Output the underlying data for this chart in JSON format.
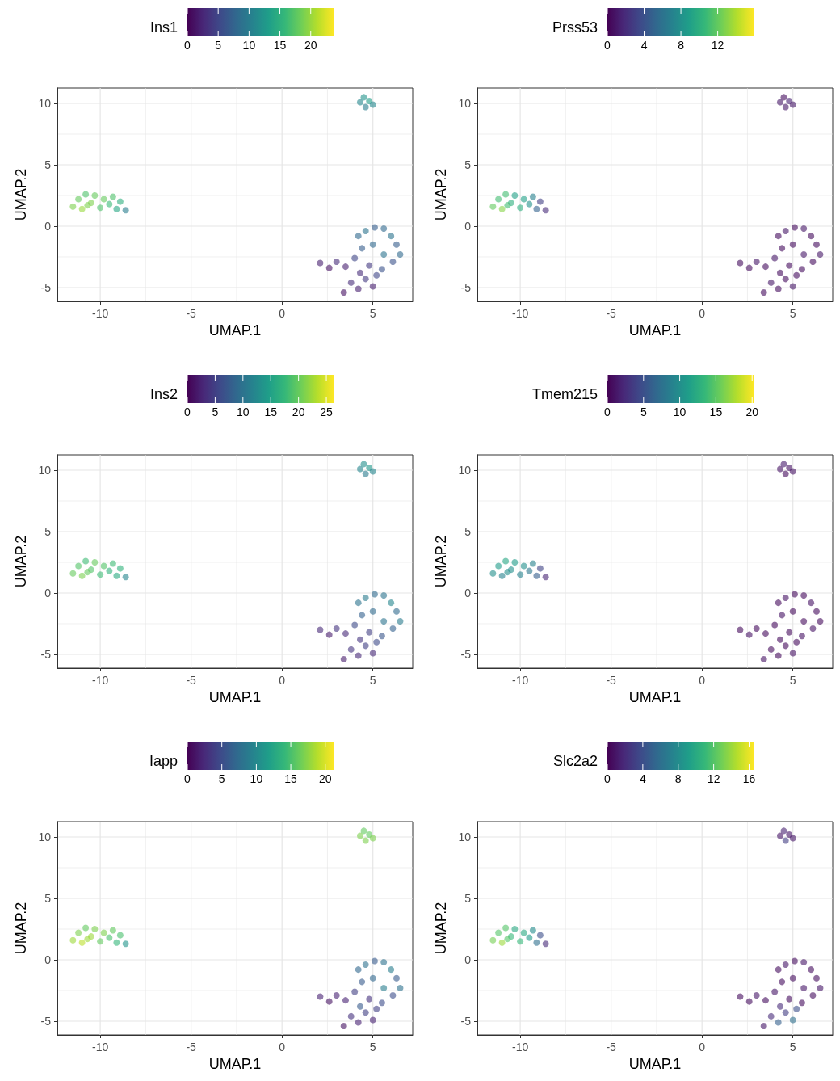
{
  "chart_data": [
    {
      "type": "scatter",
      "xlabel": "UMAP.1",
      "ylabel": "UMAP.2",
      "clabel": "Ins1",
      "marker": "circle",
      "grid": true,
      "xlim": [
        -12.36,
        7.19
      ],
      "ylim": [
        -6.12,
        11.25
      ],
      "xticks": [
        -10,
        -5,
        0,
        5
      ],
      "yticks": [
        -5,
        0,
        5,
        10
      ],
      "clim": [
        0,
        23.7
      ],
      "cticks": [
        0,
        5,
        10,
        15,
        20
      ],
      "x": [
        -11.5,
        -11.2,
        -11.0,
        -10.8,
        -10.5,
        -10.3,
        -10.0,
        -9.8,
        -9.5,
        -9.3,
        -9.1,
        -8.9,
        -8.6,
        -10.7,
        4.3,
        4.5,
        4.6,
        4.8,
        5.0,
        4.2,
        4.6,
        5.1,
        5.6,
        6.0,
        6.3,
        6.5,
        6.1,
        5.6,
        5.0,
        4.4,
        4.0,
        4.8,
        5.5,
        2.1,
        2.6,
        3.0,
        3.5,
        3.4,
        3.8,
        4.2,
        4.6,
        5.0,
        4.3,
        5.2
      ],
      "values": [
        1.6,
        2.2,
        1.4,
        2.6,
        1.9,
        2.5,
        1.5,
        2.2,
        1.8,
        2.4,
        1.4,
        2.0,
        1.3,
        1.7,
        10.1,
        10.5,
        9.7,
        10.2,
        9.9,
        -0.8,
        -0.4,
        -0.1,
        -0.2,
        -0.8,
        -1.5,
        -2.3,
        -2.9,
        -2.3,
        -1.5,
        -1.8,
        -2.6,
        -3.2,
        -3.5,
        -3.0,
        -3.4,
        -2.9,
        -3.3,
        -5.4,
        -4.6,
        -5.1,
        -4.3,
        -4.9,
        -3.8,
        -4.0
      ],
      "cvalues": [
        19,
        18,
        20,
        17,
        19,
        18,
        17,
        18,
        16,
        17,
        14,
        15,
        10,
        19,
        11,
        12,
        10,
        13,
        11,
        8,
        9,
        7,
        8,
        9,
        7,
        8,
        6,
        9,
        8,
        7,
        5,
        4,
        6,
        2,
        1,
        3,
        2,
        1,
        3,
        2,
        4,
        2,
        3,
        5
      ]
    },
    {
      "type": "scatter",
      "xlabel": "UMAP.1",
      "ylabel": "UMAP.2",
      "clabel": "Prss53",
      "marker": "circle",
      "grid": true,
      "xlim": [
        -12.36,
        7.19
      ],
      "ylim": [
        -6.12,
        11.25
      ],
      "xticks": [
        -10,
        -5,
        0,
        5
      ],
      "yticks": [
        -5,
        0,
        5,
        10
      ],
      "clim": [
        0,
        15.9
      ],
      "cticks": [
        0,
        4,
        8,
        12
      ],
      "x": [
        -11.5,
        -11.2,
        -11.0,
        -10.8,
        -10.5,
        -10.3,
        -10.0,
        -9.8,
        -9.5,
        -9.3,
        -9.1,
        -8.9,
        -8.6,
        -10.7,
        4.3,
        4.5,
        4.6,
        4.8,
        5.0,
        4.2,
        4.6,
        5.1,
        5.6,
        6.0,
        6.3,
        6.5,
        6.1,
        5.6,
        5.0,
        4.4,
        4.0,
        4.8,
        5.5,
        2.1,
        2.6,
        3.0,
        3.5,
        3.4,
        3.8,
        4.2,
        4.6,
        5.0,
        4.3,
        5.2
      ],
      "values": [
        1.6,
        2.2,
        1.4,
        2.6,
        1.9,
        2.5,
        1.5,
        2.2,
        1.8,
        2.4,
        1.4,
        2.0,
        1.3,
        1.7,
        10.1,
        10.5,
        9.7,
        10.2,
        9.9,
        -0.8,
        -0.4,
        -0.1,
        -0.2,
        -0.8,
        -1.5,
        -2.3,
        -2.9,
        -2.3,
        -1.5,
        -1.8,
        -2.6,
        -3.2,
        -3.5,
        -3.0,
        -3.4,
        -2.9,
        -3.3,
        -5.4,
        -4.6,
        -5.1,
        -4.3,
        -4.9,
        -3.8,
        -4.0
      ],
      "cvalues": [
        12,
        11,
        13,
        11,
        10,
        9,
        10,
        9,
        8,
        7,
        5,
        3,
        2,
        11,
        1,
        0.5,
        1,
        1.5,
        1,
        0.5,
        1,
        0.5,
        1,
        0.5,
        0.5,
        1,
        0.5,
        1,
        0.5,
        0.5,
        1,
        0.5,
        0.5,
        0.5,
        0.5,
        1,
        0.5,
        0.5,
        1,
        0.5,
        0.5,
        1,
        0.5,
        0.5
      ]
    },
    {
      "type": "scatter",
      "xlabel": "UMAP.1",
      "ylabel": "UMAP.2",
      "clabel": "Ins2",
      "marker": "circle",
      "grid": true,
      "xlim": [
        -12.36,
        7.19
      ],
      "ylim": [
        -6.12,
        11.25
      ],
      "xticks": [
        -10,
        -5,
        0,
        5
      ],
      "yticks": [
        -5,
        0,
        5,
        10
      ],
      "clim": [
        0,
        26.3
      ],
      "cticks": [
        0,
        5,
        10,
        15,
        20,
        25
      ],
      "x": [
        -11.5,
        -11.2,
        -11.0,
        -10.8,
        -10.5,
        -10.3,
        -10.0,
        -9.8,
        -9.5,
        -9.3,
        -9.1,
        -8.9,
        -8.6,
        -10.7,
        4.3,
        4.5,
        4.6,
        4.8,
        5.0,
        4.2,
        4.6,
        5.1,
        5.6,
        6.0,
        6.3,
        6.5,
        6.1,
        5.6,
        5.0,
        4.4,
        4.0,
        4.8,
        5.5,
        2.1,
        2.6,
        3.0,
        3.5,
        3.4,
        3.8,
        4.2,
        4.6,
        5.0,
        4.3,
        5.2
      ],
      "values": [
        1.6,
        2.2,
        1.4,
        2.6,
        1.9,
        2.5,
        1.5,
        2.2,
        1.8,
        2.4,
        1.4,
        2.0,
        1.3,
        1.7,
        10.1,
        10.5,
        9.7,
        10.2,
        9.9,
        -0.8,
        -0.4,
        -0.1,
        -0.2,
        -0.8,
        -1.5,
        -2.3,
        -2.9,
        -2.3,
        -1.5,
        -1.8,
        -2.6,
        -3.2,
        -3.5,
        -3.0,
        -3.4,
        -2.9,
        -3.3,
        -5.4,
        -4.6,
        -5.1,
        -4.3,
        -4.9,
        -3.8,
        -4.0
      ],
      "cvalues": [
        20,
        19,
        21,
        18,
        19,
        20,
        18,
        19,
        17,
        18,
        16,
        17,
        12,
        20,
        12,
        13,
        11,
        14,
        12,
        10,
        11,
        9,
        10,
        12,
        9,
        11,
        8,
        10,
        9,
        8,
        6,
        5,
        7,
        3,
        2,
        4,
        3,
        2,
        4,
        3,
        5,
        3,
        4,
        6
      ]
    },
    {
      "type": "scatter",
      "xlabel": "UMAP.1",
      "ylabel": "UMAP.2",
      "clabel": "Tmem215",
      "marker": "circle",
      "grid": true,
      "xlim": [
        -12.36,
        7.19
      ],
      "ylim": [
        -6.12,
        11.25
      ],
      "xticks": [
        -10,
        -5,
        0,
        5
      ],
      "yticks": [
        -5,
        0,
        5,
        10
      ],
      "clim": [
        0,
        20.2
      ],
      "cticks": [
        0,
        5,
        10,
        15,
        20
      ],
      "x": [
        -11.5,
        -11.2,
        -11.0,
        -10.8,
        -10.5,
        -10.3,
        -10.0,
        -9.8,
        -9.5,
        -9.3,
        -9.1,
        -8.9,
        -8.6,
        -10.7,
        4.3,
        4.5,
        4.6,
        4.8,
        5.0,
        4.2,
        4.6,
        5.1,
        5.6,
        6.0,
        6.3,
        6.5,
        6.1,
        5.6,
        5.0,
        4.4,
        4.0,
        4.8,
        5.5,
        2.1,
        2.6,
        3.0,
        3.5,
        3.4,
        3.8,
        4.2,
        4.6,
        5.0,
        4.3,
        5.2
      ],
      "values": [
        1.6,
        2.2,
        1.4,
        2.6,
        1.9,
        2.5,
        1.5,
        2.2,
        1.8,
        2.4,
        1.4,
        2.0,
        1.3,
        1.7,
        10.1,
        10.5,
        9.7,
        10.2,
        9.9,
        -0.8,
        -0.4,
        -0.1,
        -0.2,
        -0.8,
        -1.5,
        -2.3,
        -2.9,
        -2.3,
        -1.5,
        -1.8,
        -2.6,
        -3.2,
        -3.5,
        -3.0,
        -3.4,
        -2.9,
        -3.3,
        -5.4,
        -4.6,
        -5.1,
        -4.3,
        -4.9,
        -3.8,
        -4.0
      ],
      "cvalues": [
        10,
        11,
        9,
        12,
        10,
        11,
        9,
        10,
        8,
        9,
        6,
        4,
        2,
        10,
        1,
        1.5,
        0.5,
        1,
        1,
        0.5,
        1,
        0.5,
        0.5,
        1,
        0.5,
        0.5,
        1,
        0.5,
        0.5,
        1,
        0.5,
        0.5,
        1,
        0.5,
        1,
        0.5,
        0.5,
        1,
        0.5,
        0.5,
        0.5,
        1,
        0.5,
        0.5
      ]
    },
    {
      "type": "scatter",
      "xlabel": "UMAP.1",
      "ylabel": "UMAP.2",
      "clabel": "Iapp",
      "marker": "circle",
      "grid": true,
      "xlim": [
        -12.36,
        7.19
      ],
      "ylim": [
        -6.12,
        11.25
      ],
      "xticks": [
        -10,
        -5,
        0,
        5
      ],
      "yticks": [
        -5,
        0,
        5,
        10
      ],
      "clim": [
        0,
        21.2
      ],
      "cticks": [
        0,
        5,
        10,
        15,
        20
      ],
      "x": [
        -11.5,
        -11.2,
        -11.0,
        -10.8,
        -10.5,
        -10.3,
        -10.0,
        -9.8,
        -9.5,
        -9.3,
        -9.1,
        -8.9,
        -8.6,
        -10.7,
        4.3,
        4.5,
        4.6,
        4.8,
        5.0,
        4.2,
        4.6,
        5.1,
        5.6,
        6.0,
        6.3,
        6.5,
        6.1,
        5.6,
        5.0,
        4.4,
        4.0,
        4.8,
        5.5,
        2.1,
        2.6,
        3.0,
        3.5,
        3.4,
        3.8,
        4.2,
        4.6,
        5.0,
        4.3,
        5.2
      ],
      "values": [
        1.6,
        2.2,
        1.4,
        2.6,
        1.9,
        2.5,
        1.5,
        2.2,
        1.8,
        2.4,
        1.4,
        2.0,
        1.3,
        1.7,
        10.1,
        10.5,
        9.7,
        10.2,
        9.9,
        -0.8,
        -0.4,
        -0.1,
        -0.2,
        -0.8,
        -1.5,
        -2.3,
        -2.9,
        -2.3,
        -1.5,
        -1.8,
        -2.6,
        -3.2,
        -3.5,
        -3.0,
        -3.4,
        -2.9,
        -3.3,
        -5.4,
        -4.6,
        -5.1,
        -4.3,
        -4.9,
        -3.8,
        -4.0
      ],
      "cvalues": [
        18,
        17,
        19,
        16,
        18,
        17,
        16,
        17,
        15,
        16,
        14,
        15,
        11,
        18,
        17,
        16,
        17,
        16,
        17,
        7,
        8,
        6,
        8,
        9,
        6,
        8,
        5,
        9,
        7,
        6,
        4,
        3,
        5,
        2,
        1,
        2,
        2,
        1,
        3,
        2,
        4,
        2,
        6,
        4
      ]
    },
    {
      "type": "scatter",
      "xlabel": "UMAP.1",
      "ylabel": "UMAP.2",
      "clabel": "Slc2a2",
      "marker": "circle",
      "grid": true,
      "xlim": [
        -12.36,
        7.19
      ],
      "ylim": [
        -6.12,
        11.25
      ],
      "xticks": [
        -10,
        -5,
        0,
        5
      ],
      "yticks": [
        -5,
        0,
        5,
        10
      ],
      "clim": [
        0,
        16.5
      ],
      "cticks": [
        0,
        4,
        8,
        12,
        16
      ],
      "x": [
        -11.5,
        -11.2,
        -11.0,
        -10.8,
        -10.5,
        -10.3,
        -10.0,
        -9.8,
        -9.5,
        -9.3,
        -9.1,
        -8.9,
        -8.6,
        -10.7,
        4.3,
        4.5,
        4.6,
        4.8,
        5.0,
        4.2,
        4.6,
        5.1,
        5.6,
        6.0,
        6.3,
        6.5,
        6.1,
        5.6,
        5.0,
        4.4,
        4.0,
        4.8,
        5.5,
        2.1,
        2.6,
        3.0,
        3.5,
        3.4,
        3.8,
        4.2,
        4.6,
        5.0,
        4.3,
        5.2
      ],
      "values": [
        1.6,
        2.2,
        1.4,
        2.6,
        1.9,
        2.5,
        1.5,
        2.2,
        1.8,
        2.4,
        1.4,
        2.0,
        1.3,
        1.7,
        10.1,
        10.5,
        9.7,
        10.2,
        9.9,
        -0.8,
        -0.4,
        -0.1,
        -0.2,
        -0.8,
        -1.5,
        -2.3,
        -2.9,
        -2.3,
        -1.5,
        -1.8,
        -2.6,
        -3.2,
        -3.5,
        -3.0,
        -3.4,
        -2.9,
        -3.3,
        -5.4,
        -4.6,
        -5.1,
        -4.3,
        -4.9,
        -3.8,
        -4.0
      ],
      "cvalues": [
        13,
        12,
        14,
        12,
        11,
        10,
        11,
        10,
        9,
        8,
        6,
        4,
        2,
        12,
        1,
        1.5,
        3,
        1,
        1,
        0.5,
        1,
        0.5,
        1,
        0.5,
        0.5,
        1,
        0.5,
        1,
        0.5,
        0.5,
        1,
        0.5,
        0.5,
        0.5,
        0.5,
        1,
        0.5,
        1,
        2,
        5,
        3,
        6,
        2,
        4
      ]
    }
  ]
}
